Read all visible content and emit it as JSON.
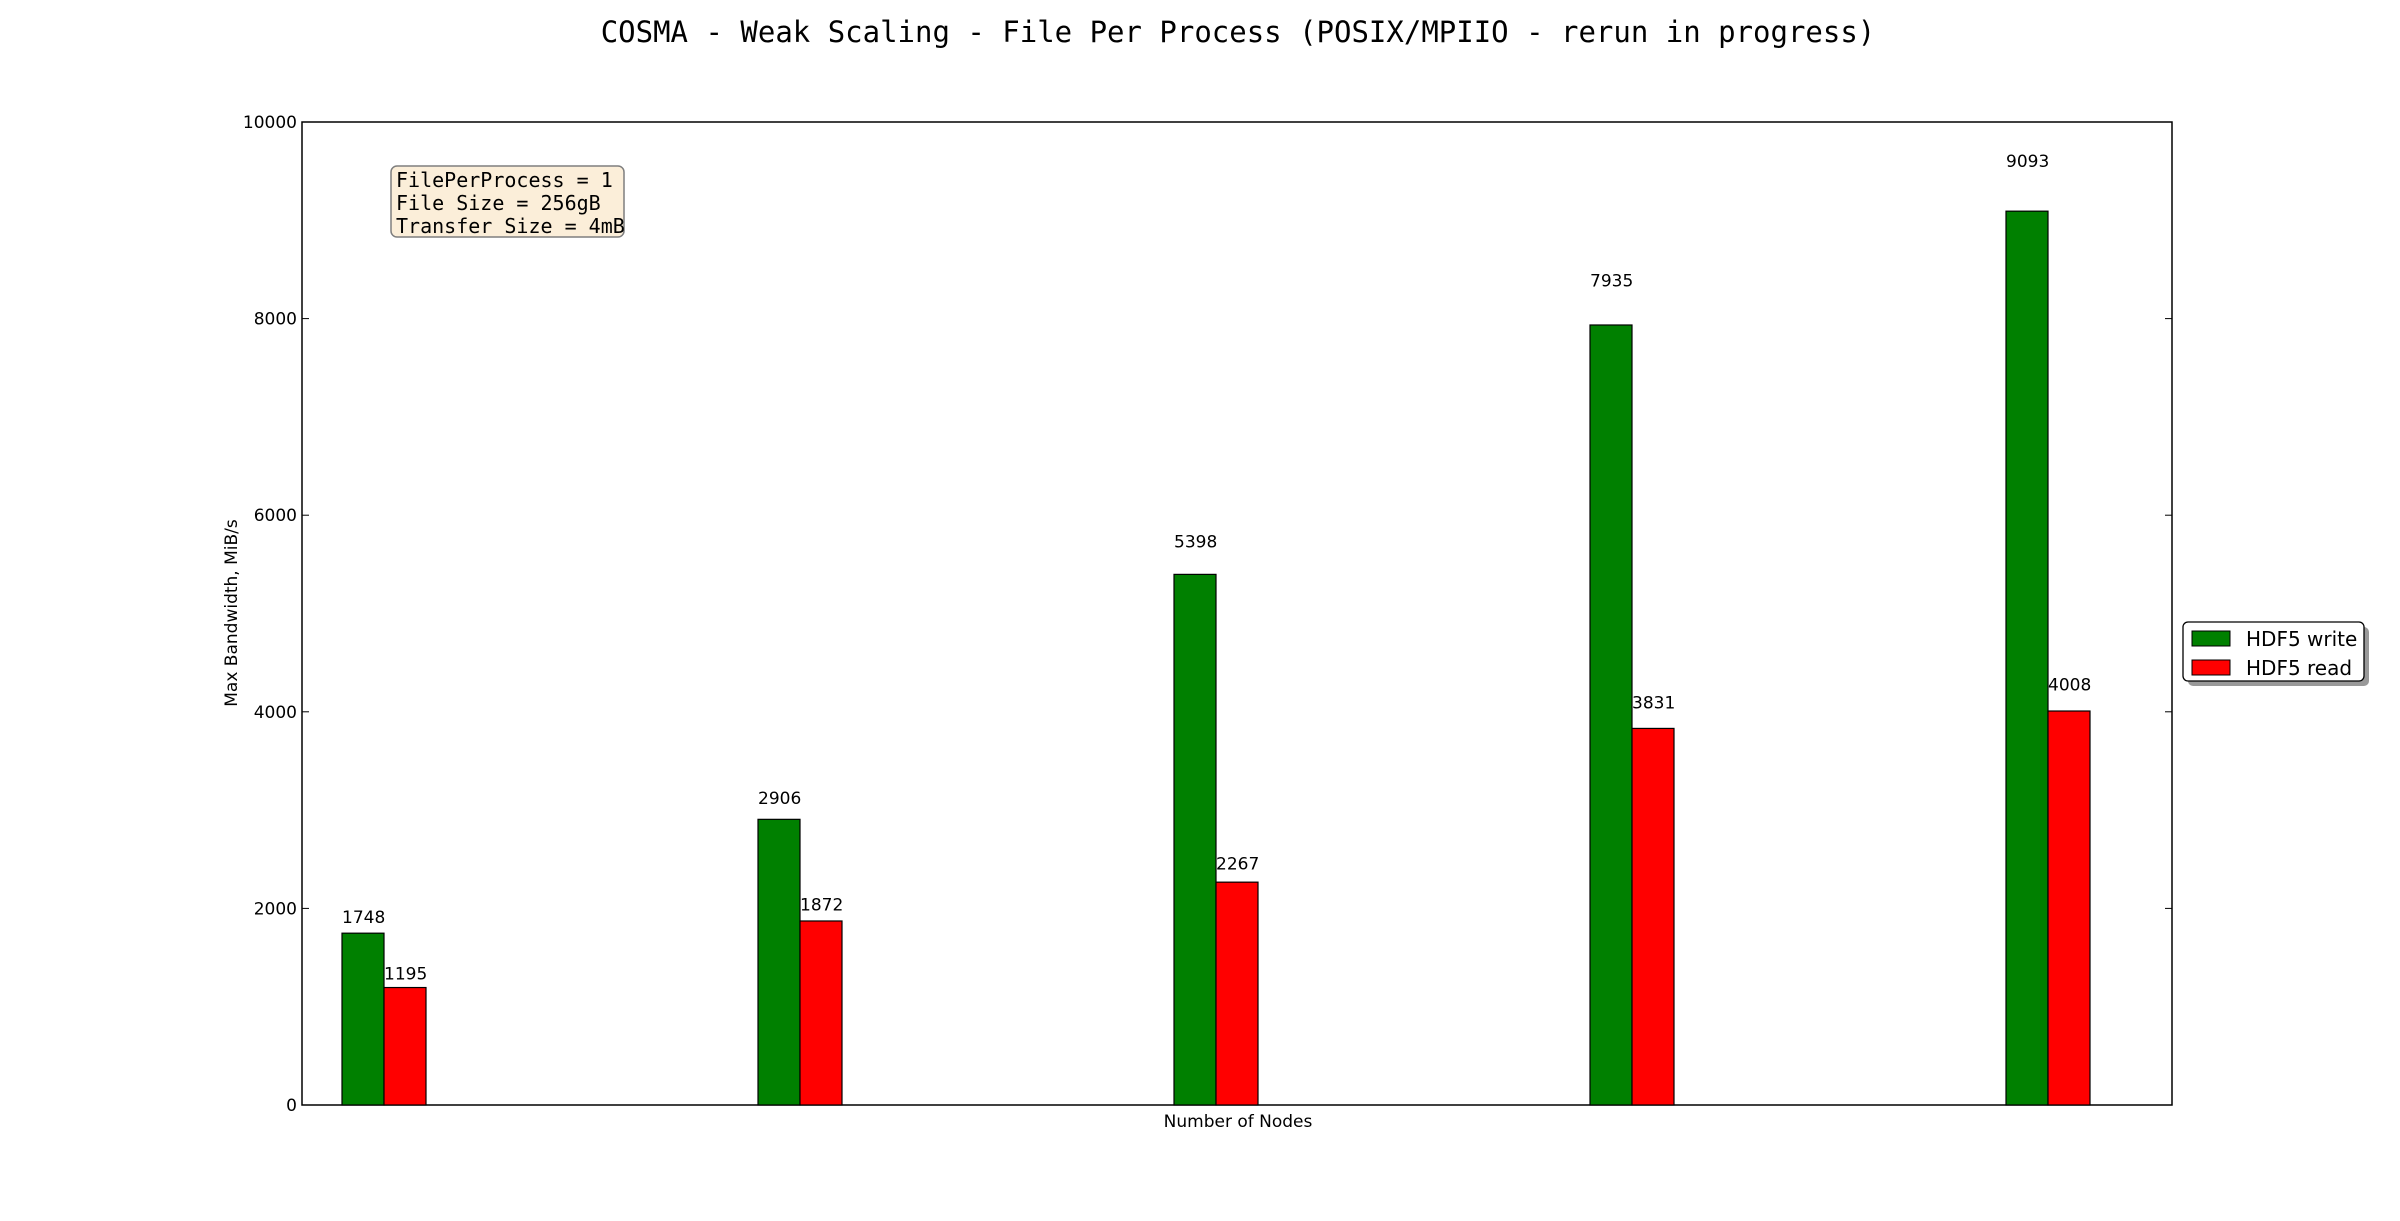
{
  "chart_data": {
    "type": "bar",
    "title": "COSMA - Weak Scaling - File Per Process (POSIX/MPIIO - rerun in progress)",
    "xlabel": "Number of Nodes",
    "ylabel": "Max Bandwidth, MiB/s",
    "ylim": [
      0,
      10000
    ],
    "yticks": [
      "0",
      "2000",
      "4000",
      "6000",
      "8000",
      "10000"
    ],
    "categories": [
      "",
      "",
      "",
      "",
      ""
    ],
    "series": [
      {
        "name": "HDF5 write",
        "color": "#008000",
        "values": [
          1748,
          2906,
          5398,
          7935,
          9093
        ]
      },
      {
        "name": "HDF5 read",
        "color": "#ff0000",
        "values": [
          1195,
          1872,
          2267,
          3831,
          4008
        ]
      }
    ],
    "annotation": [
      "FilePerProcess = 1",
      "File Size = 256gB",
      "Transfer Size = 4mB"
    ],
    "legend_position": "right",
    "grid": false
  }
}
